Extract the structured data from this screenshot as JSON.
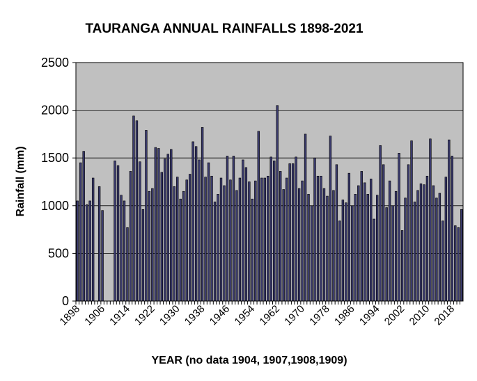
{
  "chart_data": {
    "type": "bar",
    "title": "TAURANGA ANNUAL RAINFALLS 1898-2021",
    "xlabel": "YEAR (no data 1904, 1907,1908,1909)",
    "ylabel": "Rainfall (mm)",
    "ylim": [
      0,
      2500
    ],
    "yticks": [
      0,
      500,
      1000,
      1500,
      2000,
      2500
    ],
    "xtick_labels": [
      "1898",
      "1906",
      "1914",
      "1922",
      "1930",
      "1938",
      "1946",
      "1954",
      "1962",
      "1970",
      "1978",
      "1986",
      "1994",
      "2002",
      "2010",
      "2018"
    ],
    "grid": true,
    "plot_background": "#c0c0c0",
    "bar_color": "#3b3b6e",
    "start_year": 1898,
    "values": [
      1050,
      1450,
      1570,
      1010,
      1050,
      1290,
      null,
      1200,
      950,
      null,
      null,
      null,
      1470,
      1420,
      1110,
      1050,
      770,
      1360,
      1940,
      1890,
      1460,
      960,
      1790,
      1150,
      1180,
      1610,
      1600,
      1350,
      1490,
      1540,
      1590,
      1200,
      1300,
      1070,
      1150,
      1270,
      1330,
      1670,
      1620,
      1480,
      1820,
      1300,
      1450,
      1310,
      1040,
      1120,
      1290,
      1210,
      1520,
      1270,
      1520,
      1160,
      1290,
      1480,
      1400,
      1250,
      1070,
      1260,
      1780,
      1290,
      1290,
      1310,
      1510,
      1470,
      2050,
      1360,
      1170,
      1290,
      1440,
      1440,
      1510,
      1180,
      1260,
      1750,
      1120,
      1000,
      1500,
      1310,
      1310,
      1180,
      1100,
      1730,
      1160,
      1430,
      840,
      1060,
      1030,
      1340,
      1000,
      1120,
      1210,
      1360,
      1240,
      1120,
      1280,
      860,
      1110,
      1630,
      1430,
      980,
      1260,
      1000,
      1150,
      1550,
      740,
      1080,
      1430,
      1680,
      1040,
      1160,
      1230,
      1220,
      1310,
      1700,
      1210,
      1080,
      1130,
      840,
      1300,
      1690,
      1520,
      790,
      770,
      960
    ]
  }
}
